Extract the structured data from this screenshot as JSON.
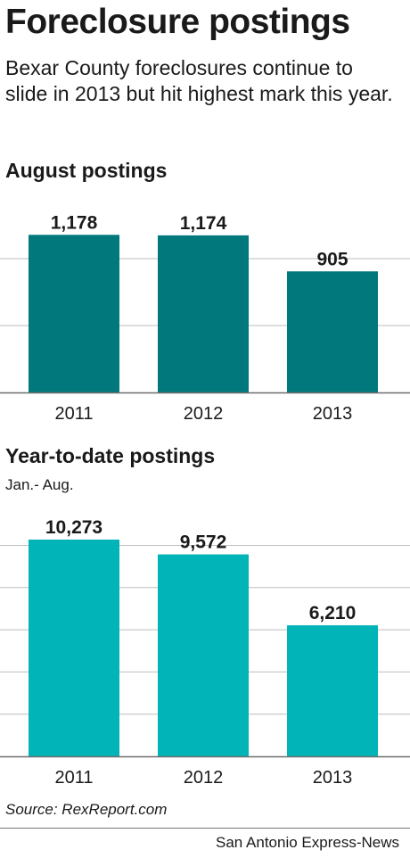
{
  "header": {
    "title": "Foreclosure postings",
    "subtitle": "Bexar County foreclosures continue to slide in 2013 but hit highest mark this year."
  },
  "chart_data": [
    {
      "type": "bar",
      "title": "August postings",
      "subtitle": "",
      "categories": [
        "2011",
        "2012",
        "2013"
      ],
      "values": [
        1178,
        1174,
        905
      ],
      "value_labels": [
        "1,178",
        "1,174",
        "905"
      ],
      "ylim": [
        0,
        1400
      ],
      "grid_values": [
        500,
        1000
      ],
      "grid": true,
      "color": "#00787c"
    },
    {
      "type": "bar",
      "title": "Year-to-date postings",
      "subtitle": "Jan.- Aug.",
      "categories": [
        "2011",
        "2012",
        "2013"
      ],
      "values": [
        10273,
        9572,
        6210
      ],
      "value_labels": [
        "10,273",
        "9,572",
        "6,210"
      ],
      "ylim": [
        0,
        11500
      ],
      "grid_values": [
        2000,
        4000,
        6000,
        8000,
        10000
      ],
      "grid": true,
      "color": "#00b4b7"
    }
  ],
  "footer": {
    "source": "Source: RexReport.com",
    "credit": "San Antonio Express-News"
  }
}
